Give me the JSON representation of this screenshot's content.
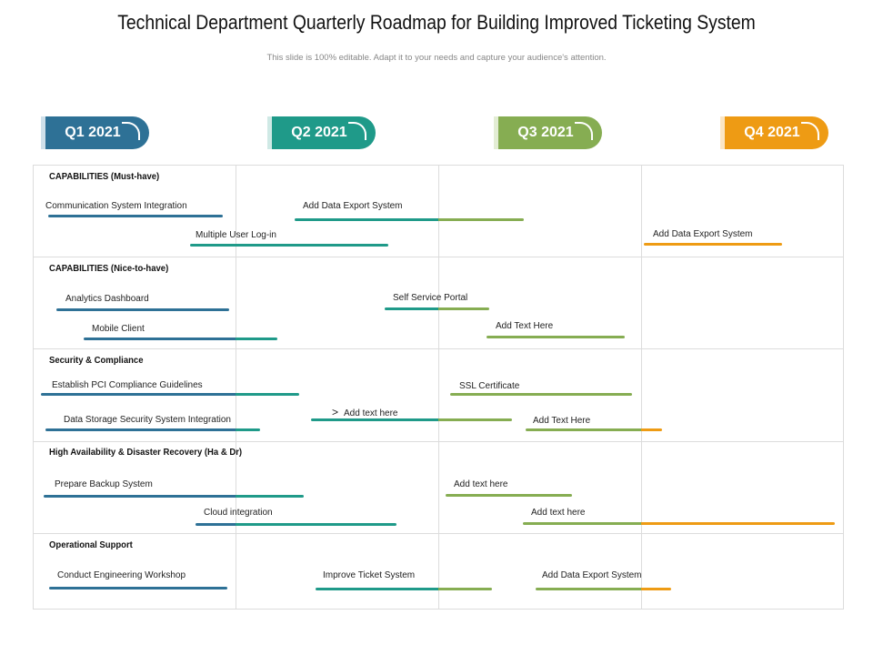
{
  "title": "Technical Department Quarterly Roadmap for Building Improved Ticketing System",
  "subtitle": "This slide is 100% editable. Adapt it to your needs and capture your audience's attention.",
  "quarters": [
    {
      "label": "Q1 2021",
      "color": "#2e7196"
    },
    {
      "label": "Q2 2021",
      "color": "#1f9a89"
    },
    {
      "label": "Q3 2021",
      "color": "#86ad52"
    },
    {
      "label": "Q4 2021",
      "color": "#ee9b14"
    }
  ],
  "sections": [
    {
      "label": "CAPABILITIES (Must-have)"
    },
    {
      "label": "CAPABILITIES (Nice-to-have)"
    },
    {
      "label": "Security & Compliance"
    },
    {
      "label": "High Availability & Disaster Recovery (Ha & Dr)"
    },
    {
      "label": "Operational Support"
    }
  ],
  "tasks": [
    {
      "label": "Communication  System Integration"
    },
    {
      "label": "Add Data  Export System"
    },
    {
      "label": "Multiple  User Log-in"
    },
    {
      "label": "Add Data  Export System"
    },
    {
      "label": "Analytics  Dashboard"
    },
    {
      "label": "Self Service Portal"
    },
    {
      "label": "Mobile Client"
    },
    {
      "label": "Add Text Here"
    },
    {
      "label": "Establish  PCI Compliance  Guidelines"
    },
    {
      "label": "SSL Certificate"
    },
    {
      "label": "Add text here"
    },
    {
      "label": "Data  Storage Security System Integration"
    },
    {
      "label": "Add Text Here"
    },
    {
      "label": "Prepare Backup System"
    },
    {
      "label": "Add text here"
    },
    {
      "label": "Cloud integration"
    },
    {
      "label": "Add text here"
    },
    {
      "label": "Conduct  Engineering Workshop"
    },
    {
      "label": "Improve Ticket System"
    },
    {
      "label": "Add Data  Export System"
    }
  ]
}
